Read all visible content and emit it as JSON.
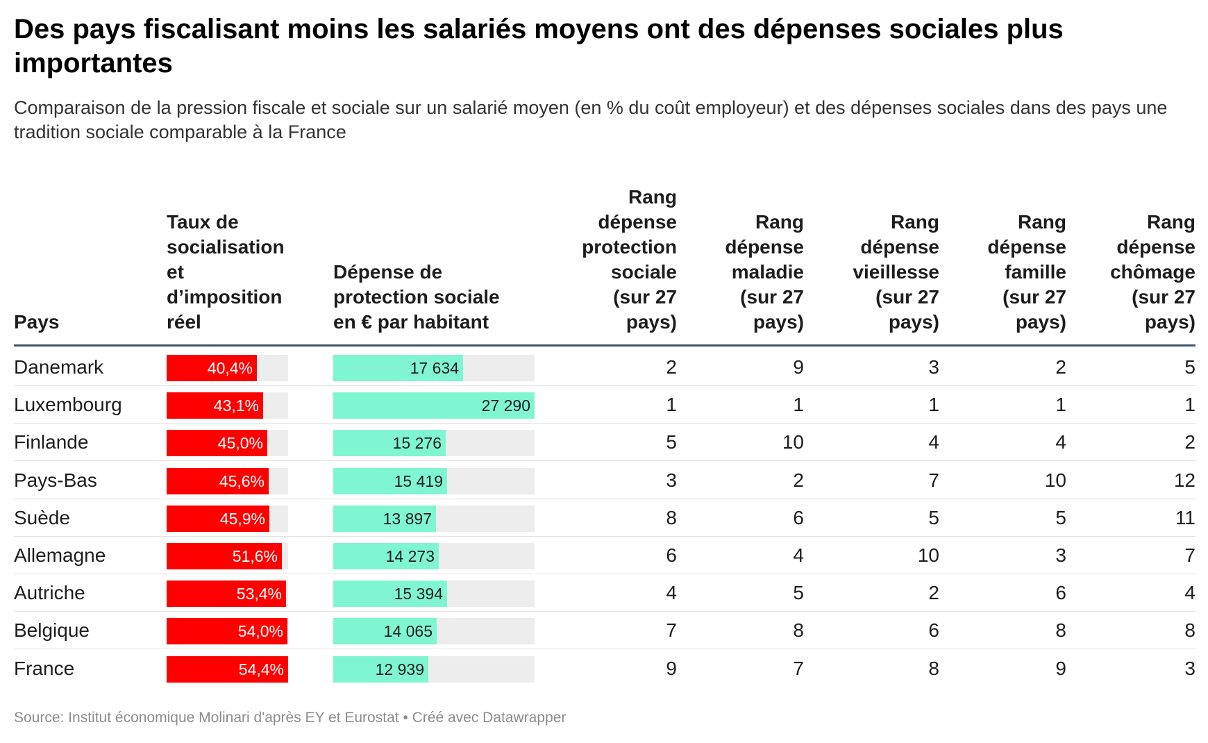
{
  "title": "Des pays fiscalisant moins les salariés moyens ont des dépenses sociales plus importantes",
  "subtitle": "Comparaison de la pression fiscale et sociale sur un salarié moyen (en % du coût employeur) et des dépenses sociales dans des pays une tradition sociale comparable à la France",
  "source": "Source: Institut économique Molinari d'après EY et Eurostat • Créé avec Datawrapper",
  "colors": {
    "tax_bar": "#ff0000",
    "spend_bar": "#7ff6d1",
    "bar_background": "#ededed",
    "header_rule": "#3d5566"
  },
  "chart_data": {
    "type": "table",
    "columns": [
      [
        "Pays"
      ],
      [
        "Taux de",
        "socialisation",
        "et",
        "d’imposition",
        "réel"
      ],
      [
        "Dépense de",
        "protection sociale",
        "en € par habitant"
      ],
      [
        "Rang",
        "dépense",
        "protection",
        "sociale",
        "(sur 27",
        "pays)"
      ],
      [
        "Rang",
        "dépense",
        "maladie",
        "(sur 27",
        "pays)"
      ],
      [
        "Rang",
        "dépense",
        "vieillesse",
        "(sur 27",
        "pays)"
      ],
      [
        "Rang",
        "dépense",
        "famille",
        "(sur 27",
        "pays)"
      ],
      [
        "Rang",
        "dépense",
        "chômage",
        "(sur 27",
        "pays)"
      ]
    ],
    "rate_scale_max": 54.4,
    "spend_scale_max": 27290,
    "rows": [
      {
        "country": "Danemark",
        "rate": 40.4,
        "rate_label": "40,4%",
        "spend": 17634,
        "spend_label": "17 634",
        "ranks": [
          "2",
          "9",
          "3",
          "2",
          "5"
        ]
      },
      {
        "country": "Luxembourg",
        "rate": 43.1,
        "rate_label": "43,1%",
        "spend": 27290,
        "spend_label": "27 290",
        "ranks": [
          "1",
          "1",
          "1",
          "1",
          "1"
        ]
      },
      {
        "country": "Finlande",
        "rate": 45.0,
        "rate_label": "45,0%",
        "spend": 15276,
        "spend_label": "15 276",
        "ranks": [
          "5",
          "10",
          "4",
          "4",
          "2"
        ]
      },
      {
        "country": "Pays-Bas",
        "rate": 45.6,
        "rate_label": "45,6%",
        "spend": 15419,
        "spend_label": "15 419",
        "ranks": [
          "3",
          "2",
          "7",
          "10",
          "12"
        ]
      },
      {
        "country": "Suède",
        "rate": 45.9,
        "rate_label": "45,9%",
        "spend": 13897,
        "spend_label": "13 897",
        "ranks": [
          "8",
          "6",
          "5",
          "5",
          "11"
        ]
      },
      {
        "country": "Allemagne",
        "rate": 51.6,
        "rate_label": "51,6%",
        "spend": 14273,
        "spend_label": "14 273",
        "ranks": [
          "6",
          "4",
          "10",
          "3",
          "7"
        ]
      },
      {
        "country": "Autriche",
        "rate": 53.4,
        "rate_label": "53,4%",
        "spend": 15394,
        "spend_label": "15 394",
        "ranks": [
          "4",
          "5",
          "2",
          "6",
          "4"
        ]
      },
      {
        "country": "Belgique",
        "rate": 54.0,
        "rate_label": "54,0%",
        "spend": 14065,
        "spend_label": "14 065",
        "ranks": [
          "7",
          "8",
          "6",
          "8",
          "8"
        ]
      },
      {
        "country": "France",
        "rate": 54.4,
        "rate_label": "54,4%",
        "spend": 12939,
        "spend_label": "12 939",
        "ranks": [
          "9",
          "7",
          "8",
          "9",
          "3"
        ]
      }
    ]
  }
}
